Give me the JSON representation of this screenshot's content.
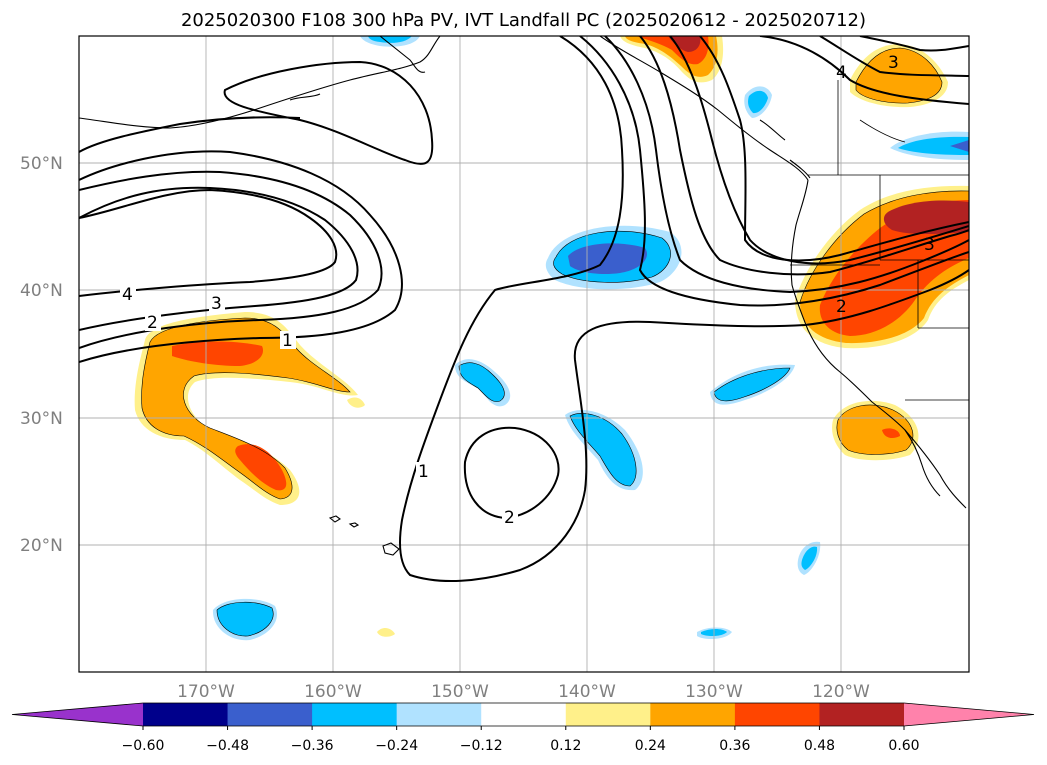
{
  "title": "2025020300 F108 300 hPa PV, IVT Landfall PC (2025020612 - 2025020712)",
  "map": {
    "lat_labels": [
      "50°N",
      "40°N",
      "30°N",
      "20°N"
    ],
    "lon_labels": [
      "170°W",
      "160°W",
      "150°W",
      "140°W",
      "130°W",
      "120°W"
    ],
    "contour_labels": [
      "4",
      "3",
      "2",
      "1",
      "1",
      "2",
      "2",
      "3",
      "3",
      "4"
    ]
  },
  "colorbar": {
    "levels": [
      "−0.60",
      "−0.48",
      "−0.36",
      "−0.24",
      "−0.12",
      "0.12",
      "0.24",
      "0.36",
      "0.48",
      "0.60"
    ],
    "colors": [
      "#9932cc",
      "#00008b",
      "#3a5fcd",
      "#00bfff",
      "#b0e2ff",
      "#ffffff",
      "#fff08a",
      "#ffa500",
      "#ff4500",
      "#b22222",
      "#ff82ab"
    ]
  }
}
